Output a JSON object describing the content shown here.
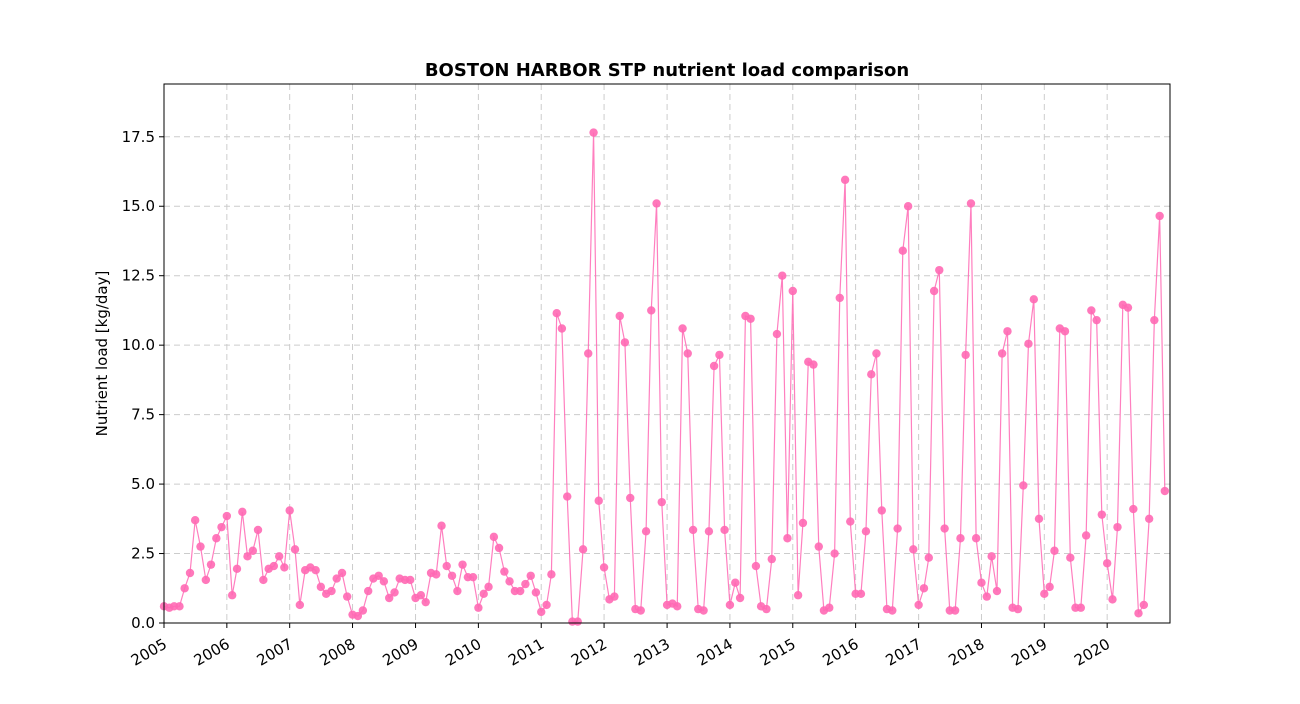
{
  "chart_data": {
    "type": "line",
    "title": "BOSTON HARBOR STP nutrient load comparison",
    "xlabel": "",
    "ylabel": "Nutrient load [kg/day]",
    "xlim": [
      "2005-01-01",
      "2020-12-31"
    ],
    "ylim": [
      0,
      19.4
    ],
    "y_ticks": [
      0.0,
      2.5,
      5.0,
      7.5,
      10.0,
      12.5,
      15.0,
      17.5
    ],
    "y_tick_labels": [
      "0.0",
      "2.5",
      "5.0",
      "7.5",
      "10.0",
      "12.5",
      "15.0",
      "17.5"
    ],
    "x_ticks": [
      "2005-01-01",
      "2006-01-01",
      "2007-01-01",
      "2008-01-01",
      "2009-01-01",
      "2010-01-01",
      "2011-01-01",
      "2012-01-01",
      "2013-01-01",
      "2014-01-01",
      "2015-01-01",
      "2016-01-01",
      "2017-01-01",
      "2018-01-01",
      "2019-01-01",
      "2020-01-01"
    ],
    "x_tick_labels": [
      "2005",
      "2006",
      "2007",
      "2008",
      "2009",
      "2010",
      "2011",
      "2012",
      "2013",
      "2014",
      "2015",
      "2016",
      "2017",
      "2018",
      "2019",
      "2020"
    ],
    "grid": true,
    "color": "#ff69b4",
    "series": [
      {
        "x": [
          "2005-01-01",
          "2005-02-01",
          "2005-03-01",
          "2005-04-01",
          "2005-05-01",
          "2005-06-01",
          "2005-07-01",
          "2005-08-01",
          "2005-09-01",
          "2005-10-01",
          "2005-11-01",
          "2005-12-01",
          "2006-01-01",
          "2006-02-01",
          "2006-03-01",
          "2006-04-01",
          "2006-05-01",
          "2006-06-01",
          "2006-07-01",
          "2006-08-01",
          "2006-09-01",
          "2006-10-01",
          "2006-11-01",
          "2006-12-01",
          "2007-01-01",
          "2007-02-01",
          "2007-03-01",
          "2007-04-01",
          "2007-05-01",
          "2007-06-01",
          "2007-07-01",
          "2007-08-01",
          "2007-09-01",
          "2007-10-01",
          "2007-11-01",
          "2007-12-01",
          "2008-01-01",
          "2008-02-01",
          "2008-03-01",
          "2008-04-01",
          "2008-05-01",
          "2008-06-01",
          "2008-07-01",
          "2008-08-01",
          "2008-09-01",
          "2008-10-01",
          "2008-11-01",
          "2008-12-01",
          "2009-01-01",
          "2009-02-01",
          "2009-03-01",
          "2009-04-01",
          "2009-05-01",
          "2009-06-01",
          "2009-07-01",
          "2009-08-01",
          "2009-09-01",
          "2009-10-01",
          "2009-11-01",
          "2009-12-01",
          "2010-01-01",
          "2010-02-01",
          "2010-03-01",
          "2010-04-01",
          "2010-05-01",
          "2010-06-01",
          "2010-07-01",
          "2010-08-01",
          "2010-09-01",
          "2010-10-01",
          "2010-11-01",
          "2010-12-01",
          "2011-01-01",
          "2011-02-01",
          "2011-03-01",
          "2011-04-01",
          "2011-05-01",
          "2011-06-01",
          "2011-07-01",
          "2011-08-01",
          "2011-09-01",
          "2011-10-01",
          "2011-11-01",
          "2011-12-01",
          "2012-01-01",
          "2012-02-01",
          "2012-03-01",
          "2012-04-01",
          "2012-05-01",
          "2012-06-01",
          "2012-07-01",
          "2012-08-01",
          "2012-09-01",
          "2012-10-01",
          "2012-11-01",
          "2012-12-01",
          "2013-01-01",
          "2013-02-01",
          "2013-03-01",
          "2013-04-01",
          "2013-05-01",
          "2013-06-01",
          "2013-07-01",
          "2013-08-01",
          "2013-09-01",
          "2013-10-01",
          "2013-11-01",
          "2013-12-01",
          "2014-01-01",
          "2014-02-01",
          "2014-03-01",
          "2014-04-01",
          "2014-05-01",
          "2014-06-01",
          "2014-07-01",
          "2014-08-01",
          "2014-09-01",
          "2014-10-01",
          "2014-11-01",
          "2014-12-01",
          "2015-01-01",
          "2015-02-01",
          "2015-03-01",
          "2015-04-01",
          "2015-05-01",
          "2015-06-01",
          "2015-07-01",
          "2015-08-01",
          "2015-09-01",
          "2015-10-01",
          "2015-11-01",
          "2015-12-01",
          "2016-01-01",
          "2016-02-01",
          "2016-03-01",
          "2016-04-01",
          "2016-05-01",
          "2016-06-01",
          "2016-07-01",
          "2016-08-01",
          "2016-09-01",
          "2016-10-01",
          "2016-11-01",
          "2016-12-01",
          "2017-01-01",
          "2017-02-01",
          "2017-03-01",
          "2017-04-01",
          "2017-05-01",
          "2017-06-01",
          "2017-07-01",
          "2017-08-01",
          "2017-09-01",
          "2017-10-01",
          "2017-11-01",
          "2017-12-01",
          "2018-01-01",
          "2018-02-01",
          "2018-03-01",
          "2018-04-01",
          "2018-05-01",
          "2018-06-01",
          "2018-07-01",
          "2018-08-01",
          "2018-09-01",
          "2018-10-01",
          "2018-11-01",
          "2018-12-01",
          "2019-01-01",
          "2019-02-01",
          "2019-03-01",
          "2019-04-01",
          "2019-05-01",
          "2019-06-01",
          "2019-07-01",
          "2019-08-01",
          "2019-09-01",
          "2019-10-01",
          "2019-11-01",
          "2019-12-01",
          "2020-01-01",
          "2020-02-01",
          "2020-03-01",
          "2020-04-01",
          "2020-05-01",
          "2020-06-01",
          "2020-07-01",
          "2020-08-01",
          "2020-09-01",
          "2020-10-01",
          "2020-11-01",
          "2020-12-01"
        ],
        "y": [
          0.6,
          0.55,
          0.6,
          0.6,
          1.25,
          1.8,
          3.7,
          2.75,
          1.55,
          2.1,
          3.05,
          3.45,
          3.85,
          1.0,
          1.95,
          4.0,
          2.4,
          2.6,
          3.35,
          1.55,
          1.95,
          2.05,
          2.4,
          2.0,
          4.05,
          2.65,
          0.65,
          1.9,
          2.0,
          1.9,
          1.3,
          1.05,
          1.15,
          1.6,
          1.8,
          0.95,
          0.3,
          0.25,
          0.45,
          1.15,
          1.6,
          1.7,
          1.5,
          0.9,
          1.1,
          1.6,
          1.55,
          1.55,
          0.9,
          1.0,
          0.75,
          1.8,
          1.75,
          3.5,
          2.05,
          1.7,
          1.15,
          2.1,
          1.65,
          1.65,
          0.55,
          1.05,
          1.3,
          3.1,
          2.7,
          1.85,
          1.5,
          1.15,
          1.15,
          1.4,
          1.7,
          1.1,
          0.4,
          0.65,
          1.75,
          11.15,
          10.6,
          4.55,
          0.05,
          0.05,
          2.65,
          9.7,
          17.65,
          4.4,
          2.0,
          0.85,
          0.95,
          11.05,
          10.1,
          4.5,
          0.5,
          0.45,
          3.3,
          11.25,
          15.1,
          4.35,
          0.65,
          0.7,
          0.6,
          10.6,
          9.7,
          3.35,
          0.5,
          0.45,
          3.3,
          9.25,
          9.65,
          3.35,
          0.65,
          1.45,
          0.9,
          11.05,
          10.95,
          2.05,
          0.6,
          0.5,
          2.3,
          10.4,
          12.5,
          3.05,
          11.95,
          1.0,
          3.6,
          9.4,
          9.3,
          2.75,
          0.45,
          0.55,
          2.5,
          11.7,
          15.95,
          3.65,
          1.05,
          1.05,
          3.3,
          8.95,
          9.7,
          4.05,
          0.5,
          0.45,
          3.4,
          13.4,
          15.0,
          2.65,
          0.65,
          1.25,
          2.35,
          11.95,
          12.7,
          3.4,
          0.45,
          0.45,
          3.05,
          9.65,
          15.1,
          3.05,
          1.45,
          0.95,
          2.4,
          1.15,
          9.7,
          10.5,
          0.55,
          0.5,
          4.95,
          10.05,
          11.65,
          3.75,
          1.05,
          1.3,
          2.6,
          10.6,
          10.5,
          2.35,
          0.55,
          0.55,
          3.15,
          11.25,
          10.9,
          3.9,
          2.15,
          0.85,
          3.45,
          11.45,
          11.35,
          4.1,
          0.35,
          0.65,
          3.75,
          10.9,
          14.65,
          4.75
        ]
      }
    ]
  }
}
